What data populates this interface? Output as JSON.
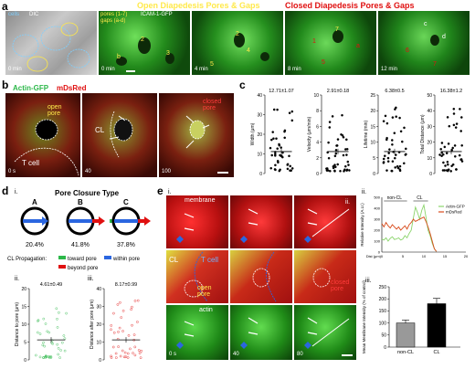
{
  "panel_a": {
    "letter": "a",
    "title_open": "Open Diapedesis Pores & Gaps",
    "title_closed": "Closed Diapedesis Pores & Gaps",
    "legend_cells": "cells",
    "legend_dic": "DIC",
    "legend_pores": "pores (1-7)",
    "legend_gaps": "gaps (a-d)",
    "legend_channel": "ICAM-1-GFP",
    "timestamps": [
      "0 min",
      "0 min",
      "4 min",
      "8 min",
      "12 min"
    ],
    "colors": {
      "open": "#ffe94a",
      "closed": "#e01010"
    }
  },
  "panel_b": {
    "letter": "b",
    "channel_actin": "Actin-GFP",
    "channel_mds": "mDsRed",
    "label_open_pore": "open pore",
    "label_t_cell": "T cell",
    "label_cl": "CL",
    "label_closed_pore": "closed pore",
    "timestamps": [
      "0 s",
      "40",
      "100"
    ]
  },
  "panel_c": {
    "letter": "c",
    "charts": [
      {
        "ylabel": "Width (μm)",
        "stat": "12.71±1.07",
        "yticks": [
          "0",
          "10",
          "20",
          "30",
          "40"
        ],
        "ymax": 40
      },
      {
        "ylabel": "Velocity (μm/min)",
        "stat": "2.91±0.18",
        "yticks": [
          "0",
          "2",
          "4",
          "6",
          "8",
          "10"
        ],
        "ymax": 10
      },
      {
        "ylabel": "Lifetime (min)",
        "stat": "6.38±0.5",
        "yticks": [
          "0",
          "5",
          "10",
          "15",
          "20",
          "25"
        ],
        "ymax": 25
      },
      {
        "ylabel": "Total Distance (μm)",
        "stat": "16.38±1.2",
        "yticks": [
          "0",
          "10",
          "20",
          "30",
          "40",
          "50"
        ],
        "ymax": 50
      }
    ]
  },
  "panel_d": {
    "letter": "d",
    "sub_i": "i.",
    "title": "Pore Closure Type",
    "types": [
      {
        "label": "A",
        "percent": "20.4%"
      },
      {
        "label": "B",
        "percent": "41.8%"
      },
      {
        "label": "C",
        "percent": "37.8%"
      }
    ],
    "cl_propagation": "CL Propagation:",
    "prop_toward": "toward pore",
    "prop_within": "within pore",
    "prop_beyond": "beyond pore",
    "colors": {
      "toward": "#2db84a",
      "within": "#2b66e0",
      "beyond": "#e01010"
    },
    "sub_ii": "ii.",
    "sub_iii": "iii.",
    "chart_ii": {
      "stat": "4.61±0.49",
      "ylabel": "Distance to pore (μm)",
      "yticks": [
        "0",
        "5",
        "10",
        "15",
        "20"
      ],
      "ymax": 20
    },
    "chart_iii": {
      "stat": "8.17±0.99",
      "ylabel": "Distance after pore (μm)",
      "yticks": [
        "0",
        "10",
        "20",
        "30",
        "40"
      ],
      "ymax": 40
    }
  },
  "panel_e": {
    "letter": "e",
    "sub_i": "i.",
    "sub_ii": "ii.",
    "sub_iii": "iii.",
    "row_membrane": "membrane",
    "row_actin": "actin",
    "label_cl": "CL",
    "label_t_cell": "T cell",
    "label_open_pore": "open pore",
    "label_closed_pore": "closed pore",
    "line_label": "ii.",
    "timestamps": [
      "0 s",
      "40",
      "80"
    ]
  },
  "chart_data": [
    {
      "type": "line",
      "title": "",
      "xlabel": "Dist (μm)",
      "ylabel": "Relative Intensity (A.U.)",
      "x_ticks": [
        "0",
        "5",
        "10",
        "15",
        "20"
      ],
      "y_ticks": [
        "0",
        "100",
        "200",
        "300",
        "400",
        "500"
      ],
      "xlim": [
        0,
        20
      ],
      "ylim": [
        0,
        500
      ],
      "annotations": [
        "non-CL",
        "CL"
      ],
      "series": [
        {
          "name": "Actin-GFP",
          "color": "#8ad46a",
          "x": [
            0,
            0.5,
            1,
            1.5,
            2,
            2.5,
            3,
            3.5,
            4,
            4.5,
            5,
            5.5,
            6,
            6.5,
            7,
            7.5,
            8,
            8.5,
            9,
            9.5,
            10,
            10.5,
            11,
            11.5,
            12,
            12.5,
            13
          ],
          "y": [
            120,
            110,
            130,
            100,
            125,
            140,
            115,
            120,
            130,
            110,
            120,
            150,
            130,
            170,
            200,
            310,
            410,
            360,
            300,
            380,
            430,
            320,
            200,
            150,
            80,
            30,
            5
          ]
        },
        {
          "name": "mDsRed",
          "color": "#d84a1a",
          "x": [
            0,
            0.5,
            1,
            1.5,
            2,
            2.5,
            3,
            3.5,
            4,
            4.5,
            5,
            5.5,
            6,
            6.5,
            7,
            7.5,
            8,
            8.5,
            9,
            9.5,
            10,
            10.5,
            11,
            11.5,
            12,
            12.5,
            13
          ],
          "y": [
            260,
            230,
            270,
            240,
            220,
            250,
            230,
            210,
            230,
            200,
            220,
            240,
            210,
            250,
            270,
            300,
            280,
            290,
            300,
            310,
            320,
            280,
            230,
            170,
            100,
            30,
            5
          ]
        }
      ]
    },
    {
      "type": "bar",
      "title": "",
      "xlabel": "",
      "ylabel": "Mean Membrane Intensity (% of control)",
      "categories": [
        "non-CL",
        "CL"
      ],
      "values": [
        100,
        180
      ],
      "errors": [
        12,
        22
      ],
      "colors": [
        "#999999",
        "#000000"
      ],
      "y_ticks": [
        "0",
        "50",
        "100",
        "150",
        "200",
        "250"
      ],
      "ylim": [
        0,
        250
      ]
    }
  ]
}
